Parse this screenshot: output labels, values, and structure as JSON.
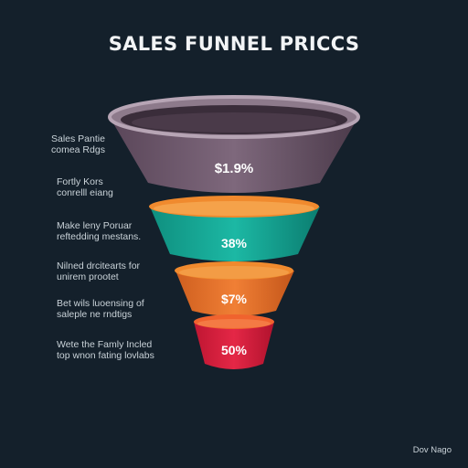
{
  "title": "SALES FUNNEL PRICCS",
  "footer": "Dov Nago",
  "stages": [
    {
      "label_lines": [
        "Sales Pantie",
        "comea Rdgs"
      ],
      "value": "$1.9%",
      "color": "#6e5a6c"
    },
    {
      "label_lines": [
        "Fortly Kors",
        "conrelll eiang"
      ],
      "value": "38%",
      "color": "#17a593"
    },
    {
      "label_lines": [
        "Make leny Poruar",
        "reftedding mestans."
      ],
      "value": "38%",
      "color": "#17a593"
    },
    {
      "label_lines": [
        "Nilned drcitearts for",
        "unirem prootet"
      ],
      "value": "$7%",
      "color": "#e8732a"
    },
    {
      "label_lines": [
        "Bet wils luoensing of",
        "saleple ne rndtigs"
      ],
      "value": "$7%",
      "color": "#e8732a"
    },
    {
      "label_lines": [
        "Wete the Famly Incled",
        "top wnon fating lovlabs"
      ],
      "value": "50%",
      "color": "#d81d3c"
    }
  ],
  "segments": [
    {
      "value": "$1.9%",
      "color": "#6e5a6c"
    },
    {
      "value": "38%",
      "color": "#17a593"
    },
    {
      "value": "$7%",
      "color": "#e8732a"
    },
    {
      "value": "50%",
      "color": "#d81d3c"
    }
  ]
}
